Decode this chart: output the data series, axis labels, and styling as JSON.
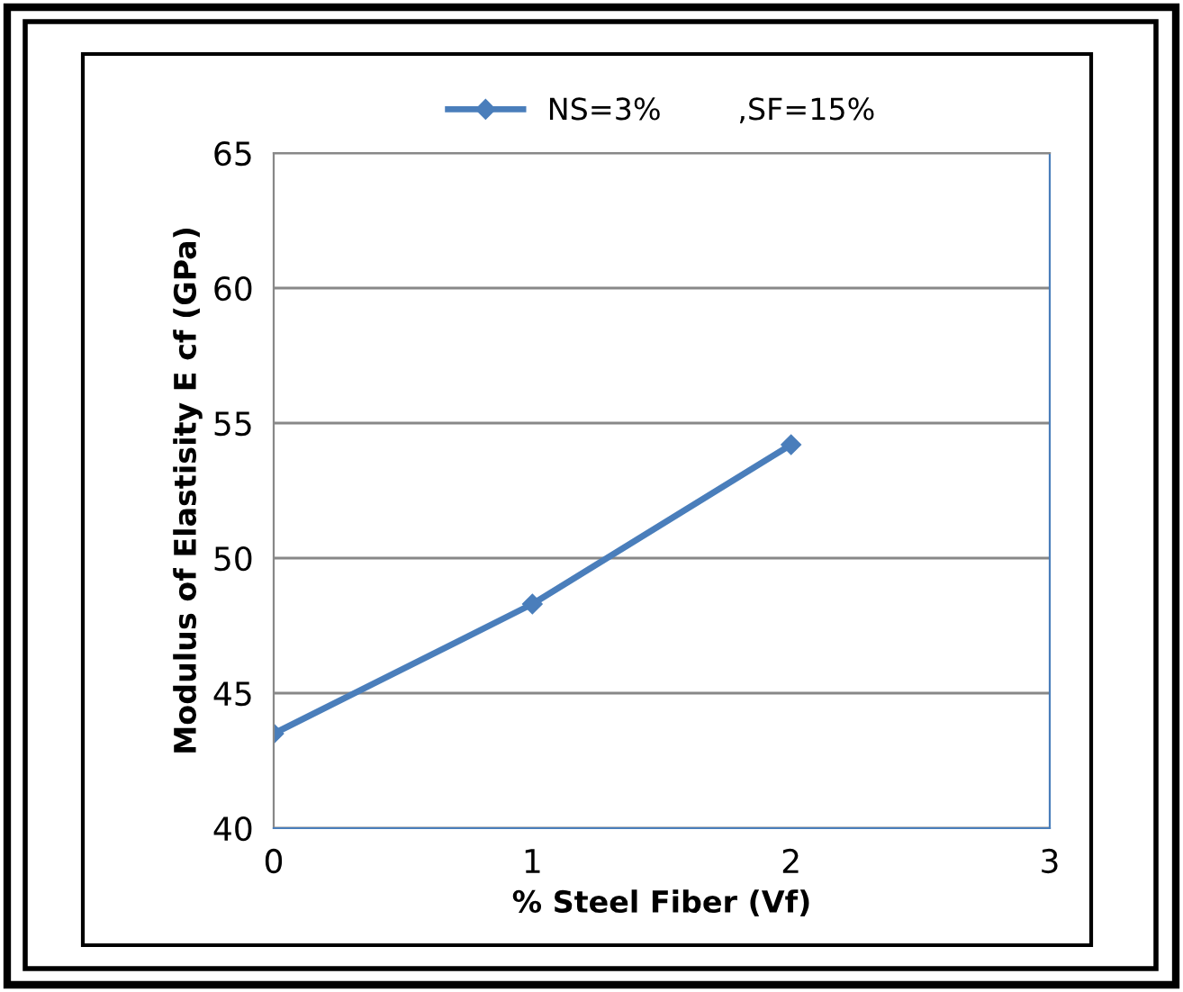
{
  "chart_data": {
    "type": "line",
    "xlabel": "% Steel Fiber (Vf)",
    "ylabel": "Modulus of Elastisity E cf (GPa)",
    "x": [
      0,
      1,
      2
    ],
    "series": [
      {
        "name": "NS=3%        ,SF=15%",
        "color": "#4a7ebb",
        "values": [
          43.5,
          48.3,
          54.2
        ]
      }
    ],
    "xlim": [
      0,
      3
    ],
    "xticks": [
      0,
      1,
      2,
      3
    ],
    "ylim": [
      40,
      65
    ],
    "yticks": [
      40,
      45,
      50,
      55,
      60,
      65
    ],
    "grid": "y",
    "legend": "top",
    "marker": "diamond",
    "line_style": "solid"
  }
}
